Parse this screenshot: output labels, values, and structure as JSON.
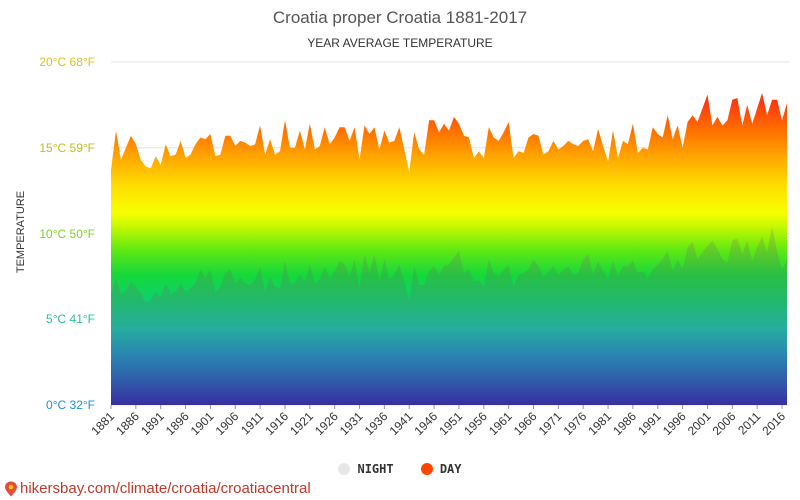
{
  "header": {
    "title": "Croatia proper Croatia 1881-2017",
    "subtitle": "YEAR AVERAGE TEMPERATURE"
  },
  "footer": {
    "source": "hikersbay.com/climate/croatia/croatiacentral"
  },
  "colors": {
    "day": "#ff4500",
    "night": "#e8e8e8"
  },
  "chart_data": {
    "type": "area",
    "title": "Croatia proper Croatia 1881-2017",
    "subtitle": "YEAR AVERAGE TEMPERATURE",
    "ylabel": "TEMPERATURE",
    "xlabel": "",
    "ylim": [
      0,
      20
    ],
    "y_ticks": [
      {
        "value": 0,
        "label": "0°C 32°F",
        "color": "#1e90d6"
      },
      {
        "value": 5,
        "label": "5°C 41°F",
        "color": "#22c0a6"
      },
      {
        "value": 10,
        "label": "10°C 50°F",
        "color": "#7ed12a"
      },
      {
        "value": 15,
        "label": "15°C 59°F",
        "color": "#bdbf1c"
      },
      {
        "value": 20,
        "label": "20°C 68°F",
        "color": "#e0c020"
      }
    ],
    "x_tick_labels": [
      "1881",
      "1886",
      "1891",
      "1896",
      "1901",
      "1906",
      "1911",
      "1916",
      "1921",
      "1926",
      "1931",
      "1936",
      "1941",
      "1946",
      "1951",
      "1956",
      "1961",
      "1966",
      "1971",
      "1976",
      "1981",
      "1986",
      "1991",
      "1996",
      "2001",
      "2006",
      "2011",
      "2016"
    ],
    "grid": true,
    "legend": "bottom-center",
    "x": [
      1881,
      1882,
      1883,
      1884,
      1885,
      1886,
      1887,
      1888,
      1889,
      1890,
      1891,
      1892,
      1893,
      1894,
      1895,
      1896,
      1897,
      1898,
      1899,
      1900,
      1901,
      1902,
      1903,
      1904,
      1905,
      1906,
      1907,
      1908,
      1909,
      1910,
      1911,
      1912,
      1913,
      1914,
      1915,
      1916,
      1917,
      1918,
      1919,
      1920,
      1921,
      1922,
      1923,
      1924,
      1925,
      1926,
      1927,
      1928,
      1929,
      1930,
      1931,
      1932,
      1933,
      1934,
      1935,
      1936,
      1937,
      1938,
      1939,
      1940,
      1941,
      1942,
      1943,
      1944,
      1945,
      1946,
      1947,
      1948,
      1949,
      1950,
      1951,
      1952,
      1953,
      1954,
      1955,
      1956,
      1957,
      1958,
      1959,
      1960,
      1961,
      1962,
      1963,
      1964,
      1965,
      1966,
      1967,
      1968,
      1969,
      1970,
      1971,
      1972,
      1973,
      1974,
      1975,
      1976,
      1977,
      1978,
      1979,
      1980,
      1981,
      1982,
      1983,
      1984,
      1985,
      1986,
      1987,
      1988,
      1989,
      1990,
      1991,
      1992,
      1993,
      1994,
      1995,
      1996,
      1997,
      1998,
      1999,
      2000,
      2001,
      2002,
      2003,
      2004,
      2005,
      2006,
      2007,
      2008,
      2009,
      2010,
      2011,
      2012,
      2013,
      2014,
      2015,
      2016,
      2017
    ],
    "series": [
      {
        "name": "DAY",
        "values": [
          13.7,
          16.0,
          14.3,
          15.0,
          15.7,
          15.2,
          14.3,
          13.9,
          13.8,
          14.5,
          14.0,
          15.2,
          14.5,
          14.6,
          15.4,
          14.4,
          14.6,
          15.2,
          15.6,
          15.5,
          15.8,
          14.5,
          14.6,
          15.7,
          15.7,
          15.1,
          15.4,
          15.3,
          15.1,
          15.2,
          16.3,
          14.6,
          15.5,
          14.6,
          14.8,
          16.6,
          15.0,
          15.0,
          16.0,
          14.9,
          16.4,
          14.9,
          15.1,
          16.2,
          15.2,
          15.6,
          16.2,
          16.2,
          15.4,
          16.2,
          14.3,
          16.3,
          15.8,
          16.2,
          14.9,
          16.0,
          15.3,
          15.4,
          16.2,
          14.9,
          13.6,
          15.9,
          14.9,
          14.6,
          16.6,
          16.6,
          15.9,
          16.4,
          16.0,
          16.8,
          16.4,
          15.7,
          15.6,
          14.4,
          14.8,
          14.4,
          16.2,
          15.6,
          15.4,
          15.9,
          16.5,
          14.4,
          14.8,
          14.7,
          15.6,
          15.8,
          15.7,
          14.6,
          14.8,
          15.4,
          14.9,
          15.1,
          15.4,
          15.2,
          15.1,
          15.4,
          15.5,
          14.8,
          16.1,
          15.1,
          14.2,
          16.0,
          14.4,
          15.4,
          15.2,
          16.4,
          14.7,
          15.0,
          14.9,
          16.2,
          15.8,
          15.6,
          16.9,
          15.5,
          16.3,
          15.0,
          16.5,
          16.9,
          16.5,
          17.3,
          18.1,
          16.3,
          16.8,
          16.3,
          16.6,
          17.8,
          17.9,
          16.3,
          17.5,
          16.4,
          17.3,
          18.2,
          16.9,
          17.8,
          17.8,
          16.6,
          17.6
        ]
      },
      {
        "name": "NIGHT",
        "values": [
          6.5,
          7.4,
          6.5,
          6.6,
          7.2,
          6.9,
          6.5,
          6.0,
          6.1,
          6.6,
          6.3,
          7.1,
          6.5,
          6.6,
          7.1,
          6.6,
          6.8,
          7.1,
          7.9,
          7.4,
          7.9,
          6.6,
          6.9,
          7.7,
          7.9,
          7.1,
          7.4,
          7.1,
          7.0,
          7.3,
          8.1,
          6.6,
          7.5,
          6.9,
          6.8,
          8.4,
          7.1,
          7.1,
          7.6,
          7.2,
          8.2,
          7.1,
          7.3,
          8.1,
          7.4,
          7.8,
          8.4,
          8.2,
          7.5,
          8.5,
          6.8,
          8.8,
          7.7,
          8.8,
          7.2,
          8.5,
          7.3,
          7.6,
          8.2,
          7.2,
          6.1,
          8.1,
          7.0,
          7.0,
          7.8,
          8.1,
          7.6,
          8.1,
          8.2,
          8.6,
          9.0,
          7.7,
          7.9,
          7.2,
          7.3,
          6.9,
          8.5,
          7.7,
          7.5,
          7.9,
          8.2,
          6.9,
          7.6,
          7.7,
          7.9,
          8.5,
          8.1,
          7.5,
          7.8,
          8.1,
          7.6,
          7.9,
          8.1,
          7.6,
          7.7,
          8.5,
          8.8,
          7.6,
          8.4,
          7.8,
          7.4,
          8.4,
          7.5,
          8.1,
          8.1,
          8.4,
          7.7,
          7.8,
          7.4,
          7.9,
          8.2,
          8.5,
          9.0,
          7.8,
          8.5,
          7.9,
          9.2,
          9.5,
          8.5,
          8.9,
          9.3,
          9.6,
          9.1,
          8.5,
          8.3,
          9.6,
          9.7,
          8.8,
          9.6,
          8.4,
          9.2,
          9.8,
          8.9,
          10.4,
          9.0,
          7.9,
          8.5
        ]
      }
    ]
  }
}
